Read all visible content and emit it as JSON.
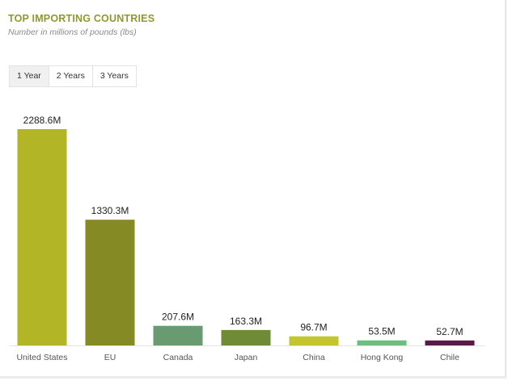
{
  "header": {
    "title": "TOP IMPORTING COUNTRIES",
    "subtitle": "Number in millions of pounds (lbs)"
  },
  "tabs": [
    {
      "label": "1 Year",
      "active": true
    },
    {
      "label": "2 Years",
      "active": false
    },
    {
      "label": "3 Years",
      "active": false
    }
  ],
  "chart_data": {
    "type": "bar",
    "categories": [
      "United States",
      "EU",
      "Canada",
      "Japan",
      "China",
      "Hong Kong",
      "Chile"
    ],
    "values": [
      2288.6,
      1330.3,
      207.6,
      163.3,
      96.7,
      53.5,
      52.7
    ],
    "value_labels": [
      "2288.6M",
      "1330.3M",
      "207.6M",
      "163.3M",
      "96.7M",
      "53.5M",
      "52.7M"
    ],
    "colors": [
      "#b1b526",
      "#858a24",
      "#6a9a72",
      "#6f8b36",
      "#c3c52e",
      "#6dbf80",
      "#5a1a45"
    ],
    "ylim": [
      0,
      2288.6
    ],
    "grid": false,
    "legend": "none"
  }
}
